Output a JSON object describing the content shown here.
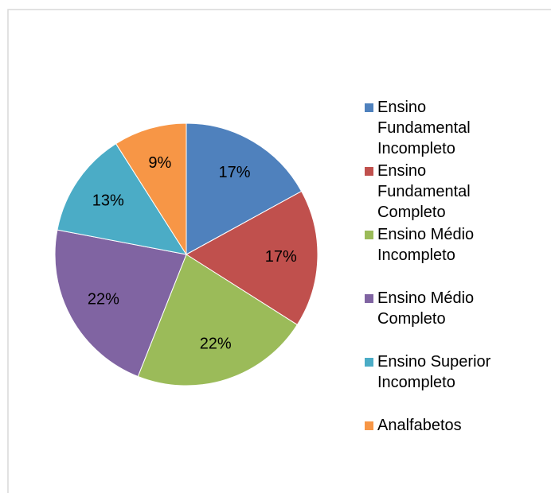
{
  "chart_data": {
    "type": "pie",
    "categories": [
      "Ensino Fundamental Incompleto",
      "Ensino Fundamental Completo",
      "Ensino Médio Incompleto",
      "Ensino Médio Completo",
      "Ensino Superior Incompleto",
      "Analfabetos"
    ],
    "values": [
      17,
      17,
      22,
      22,
      13,
      9
    ],
    "value_labels": [
      "17%",
      "17%",
      "22%",
      "22%",
      "13%",
      "9%"
    ],
    "colors": [
      "#4f81bd",
      "#c0504d",
      "#9bbb59",
      "#8064a2",
      "#4bacc6",
      "#f79646"
    ],
    "legend": "right"
  }
}
